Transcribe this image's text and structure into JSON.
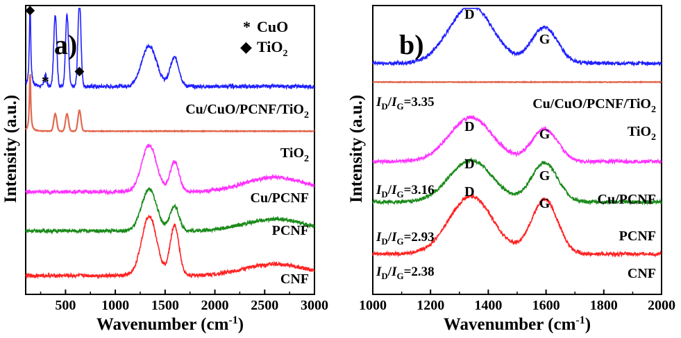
{
  "chart_data": [
    {
      "panel": "a)",
      "type": "line",
      "xlabel": "Wavenumber (cm",
      "xlabel_sup": "-1",
      "xlabel_tail": ")",
      "ylabel": "Intensity (a.u.)",
      "xlim": [
        100,
        3000
      ],
      "x_ticks": [
        "500",
        "1000",
        "1500",
        "2000",
        "2500",
        "3000"
      ],
      "legend": [
        {
          "symbol": "*",
          "label": "CuO"
        },
        {
          "symbol": "◆",
          "label": "TiO",
          "sub": "2"
        }
      ],
      "peak_markers": [
        {
          "symbol": "◆",
          "x": 144
        },
        {
          "symbol": "*",
          "x": 298
        },
        {
          "symbol": "◆",
          "x": 640
        }
      ],
      "series": [
        {
          "name": "Cu/CuO/PCNF/TiO",
          "sub": "2",
          "color": "#1f1fff",
          "offset": 0.72,
          "amp": 0.2,
          "sharp": 0.3,
          "dg": [
            0.7,
            0.5
          ],
          "tio2": 0.25,
          "cuo": 0.04
        },
        {
          "name": "TiO",
          "sub": "2",
          "color": "#e2684e",
          "offset": 0.565,
          "amp": 0.0,
          "sharp": 0.2,
          "dg": [
            0,
            0
          ],
          "tio2": 0.06,
          "cuo": 0.0
        },
        {
          "name": "Cu/PCNF",
          "sub": "",
          "color": "#ff33ff",
          "offset": 0.355,
          "amp": 0.19,
          "sharp": 0.0,
          "dg": [
            0.85,
            0.55
          ],
          "tio2": 0.0,
          "cuo": 0.0,
          "bump": 0.05
        },
        {
          "name": "PCNF",
          "sub": "",
          "color": "#1a8a1a",
          "offset": 0.22,
          "amp": 0.17,
          "sharp": 0.0,
          "dg": [
            0.85,
            0.5
          ],
          "tio2": 0.0,
          "cuo": 0.0,
          "bump": 0.04
        },
        {
          "name": "CNF",
          "sub": "",
          "color": "#ff2222",
          "offset": 0.065,
          "amp": 0.23,
          "sharp": 0.0,
          "dg": [
            0.9,
            0.75
          ],
          "tio2": 0.0,
          "cuo": 0.0,
          "bump": 0.04
        }
      ]
    },
    {
      "panel": "b)",
      "type": "line",
      "xlabel": "Wavenumber (cm",
      "xlabel_sup": "-1",
      "xlabel_tail": ")",
      "ylabel": "Intensity (a.u.)",
      "xlim": [
        1000,
        2000
      ],
      "x_ticks": [
        "1000",
        "1200",
        "1400",
        "1600",
        "1800",
        "2000"
      ],
      "series": [
        {
          "name": "Cu/CuO/PCNF/TiO",
          "sub": "2",
          "color": "#1f1fff",
          "offset": 0.8,
          "amp": 0.2,
          "dg": [
            1.0,
            0.62
          ],
          "ratio": "3.35"
        },
        {
          "name": "TiO",
          "sub": "2",
          "color": "#e2684e",
          "offset": 0.735,
          "amp": 0.0,
          "dg": [
            0,
            0
          ],
          "ratio": ""
        },
        {
          "name": "Cu/PCNF",
          "sub": "",
          "color": "#ff33ff",
          "offset": 0.46,
          "amp": 0.16,
          "dg": [
            0.95,
            0.7
          ],
          "ratio": "3.16"
        },
        {
          "name": "PCNF",
          "sub": "",
          "color": "#1a8a1a",
          "offset": 0.32,
          "amp": 0.16,
          "dg": [
            0.9,
            0.85
          ],
          "ratio": "2.93"
        },
        {
          "name": "CNF",
          "sub": "",
          "color": "#ff2222",
          "offset": 0.14,
          "amp": 0.2,
          "dg": [
            1.0,
            0.95
          ],
          "ratio": "2.38"
        }
      ],
      "peak_labels": [
        "D",
        "G"
      ],
      "ratio_prefix": {
        "i": "I",
        "d": "D",
        "g": "G",
        "eq": "="
      }
    }
  ]
}
